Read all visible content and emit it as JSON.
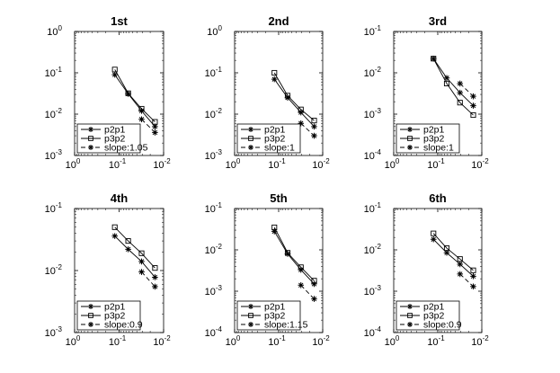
{
  "chart_data": [
    {
      "type": "line",
      "title": "1st",
      "xscale": "log",
      "yscale": "log",
      "xlim": [
        1,
        0.01
      ],
      "ylim": [
        0.001,
        1
      ],
      "x_ticks": [
        {
          "base": "10",
          "exp": "0"
        },
        {
          "base": "10",
          "exp": "-1"
        },
        {
          "base": "10",
          "exp": "-2"
        }
      ],
      "y_ticks": [
        {
          "base": "10",
          "exp": "-3"
        },
        {
          "base": "10",
          "exp": "-2"
        },
        {
          "base": "10",
          "exp": "-1"
        },
        {
          "base": "10",
          "exp": "0"
        }
      ],
      "legend": "bottom-left",
      "series": [
        {
          "name": "p2p1",
          "marker": "star",
          "style": "solid",
          "x": [
            0.125,
            0.0625,
            0.03125,
            0.015625
          ],
          "y": [
            0.09,
            0.031,
            0.012,
            0.005
          ]
        },
        {
          "name": "p3p2",
          "marker": "square",
          "style": "solid",
          "x": [
            0.125,
            0.0625,
            0.03125,
            0.015625
          ],
          "y": [
            0.12,
            0.032,
            0.0135,
            0.0065
          ]
        },
        {
          "name": "slope:1.05",
          "marker": "star",
          "style": "dashed",
          "x": [
            0.03125,
            0.015625
          ],
          "y": [
            0.0075,
            0.0036
          ]
        }
      ]
    },
    {
      "type": "line",
      "title": "2nd",
      "xscale": "log",
      "yscale": "log",
      "xlim": [
        1,
        0.01
      ],
      "ylim": [
        0.001,
        1
      ],
      "x_ticks": [
        {
          "base": "10",
          "exp": "0"
        },
        {
          "base": "10",
          "exp": "-1"
        },
        {
          "base": "10",
          "exp": "-2"
        }
      ],
      "y_ticks": [
        {
          "base": "10",
          "exp": "-3"
        },
        {
          "base": "10",
          "exp": "-2"
        },
        {
          "base": "10",
          "exp": "-1"
        },
        {
          "base": "10",
          "exp": "0"
        }
      ],
      "legend": "bottom-left",
      "series": [
        {
          "name": "p2p1",
          "marker": "star",
          "style": "solid",
          "x": [
            0.125,
            0.0625,
            0.03125,
            0.015625
          ],
          "y": [
            0.07,
            0.025,
            0.011,
            0.005
          ]
        },
        {
          "name": "p3p2",
          "marker": "square",
          "style": "solid",
          "x": [
            0.125,
            0.0625,
            0.03125,
            0.015625
          ],
          "y": [
            0.1,
            0.028,
            0.013,
            0.007
          ]
        },
        {
          "name": "slope:1",
          "marker": "star",
          "style": "dashed",
          "x": [
            0.03125,
            0.015625
          ],
          "y": [
            0.006,
            0.003
          ]
        }
      ]
    },
    {
      "type": "line",
      "title": "3rd",
      "xscale": "log",
      "yscale": "log",
      "xlim": [
        1,
        0.01
      ],
      "ylim": [
        0.0001,
        0.1
      ],
      "x_ticks": [
        {
          "base": "10",
          "exp": "0"
        },
        {
          "base": "10",
          "exp": "-1"
        },
        {
          "base": "10",
          "exp": "-2"
        }
      ],
      "y_ticks": [
        {
          "base": "10",
          "exp": "-4"
        },
        {
          "base": "10",
          "exp": "-3"
        },
        {
          "base": "10",
          "exp": "-2"
        },
        {
          "base": "10",
          "exp": "-1"
        }
      ],
      "legend": "bottom-left",
      "series": [
        {
          "name": "p2p1",
          "marker": "star",
          "style": "solid",
          "x": [
            0.125,
            0.0625,
            0.03125,
            0.015625
          ],
          "y": [
            0.022,
            0.0075,
            0.0033,
            0.0016
          ]
        },
        {
          "name": "p3p2",
          "marker": "square",
          "style": "solid",
          "x": [
            0.125,
            0.0625,
            0.03125,
            0.015625
          ],
          "y": [
            0.022,
            0.0055,
            0.0019,
            0.00095
          ]
        },
        {
          "name": "slope:1",
          "marker": "star",
          "style": "dashed",
          "x": [
            0.03125,
            0.015625
          ],
          "y": [
            0.0055,
            0.0027
          ]
        }
      ]
    },
    {
      "type": "line",
      "title": "4th",
      "xscale": "log",
      "yscale": "log",
      "xlim": [
        1,
        0.01
      ],
      "ylim": [
        0.001,
        0.1
      ],
      "x_ticks": [
        {
          "base": "10",
          "exp": "0"
        },
        {
          "base": "10",
          "exp": "-1"
        },
        {
          "base": "10",
          "exp": "-2"
        }
      ],
      "y_ticks": [
        {
          "base": "10",
          "exp": "-3"
        },
        {
          "base": "10",
          "exp": "-2"
        },
        {
          "base": "10",
          "exp": "-1"
        }
      ],
      "legend": "bottom-left",
      "series": [
        {
          "name": "p2p1",
          "marker": "star",
          "style": "solid",
          "x": [
            0.125,
            0.0625,
            0.03125,
            0.015625
          ],
          "y": [
            0.036,
            0.022,
            0.014,
            0.0078
          ]
        },
        {
          "name": "p3p2",
          "marker": "square",
          "style": "solid",
          "x": [
            0.125,
            0.0625,
            0.03125,
            0.015625
          ],
          "y": [
            0.05,
            0.03,
            0.019,
            0.011
          ]
        },
        {
          "name": "slope:0.9",
          "marker": "star",
          "style": "dashed",
          "x": [
            0.03125,
            0.015625
          ],
          "y": [
            0.0095,
            0.0055
          ]
        }
      ]
    },
    {
      "type": "line",
      "title": "5th",
      "xscale": "log",
      "yscale": "log",
      "xlim": [
        1,
        0.01
      ],
      "ylim": [
        0.0001,
        0.1
      ],
      "x_ticks": [
        {
          "base": "10",
          "exp": "0"
        },
        {
          "base": "10",
          "exp": "-1"
        },
        {
          "base": "10",
          "exp": "-2"
        }
      ],
      "y_ticks": [
        {
          "base": "10",
          "exp": "-4"
        },
        {
          "base": "10",
          "exp": "-3"
        },
        {
          "base": "10",
          "exp": "-2"
        },
        {
          "base": "10",
          "exp": "-1"
        }
      ],
      "legend": "bottom-left",
      "series": [
        {
          "name": "p2p1",
          "marker": "star",
          "style": "solid",
          "x": [
            0.125,
            0.0625,
            0.03125,
            0.015625
          ],
          "y": [
            0.028,
            0.008,
            0.0033,
            0.0015
          ]
        },
        {
          "name": "p3p2",
          "marker": "square",
          "style": "solid",
          "x": [
            0.125,
            0.0625,
            0.03125,
            0.015625
          ],
          "y": [
            0.035,
            0.0085,
            0.0038,
            0.0018
          ]
        },
        {
          "name": "slope:1.15",
          "marker": "star",
          "style": "dashed",
          "x": [
            0.03125,
            0.015625
          ],
          "y": [
            0.0014,
            0.00065
          ]
        }
      ]
    },
    {
      "type": "line",
      "title": "6th",
      "xscale": "log",
      "yscale": "log",
      "xlim": [
        1,
        0.01
      ],
      "ylim": [
        0.0001,
        0.1
      ],
      "x_ticks": [
        {
          "base": "10",
          "exp": "0"
        },
        {
          "base": "10",
          "exp": "-1"
        },
        {
          "base": "10",
          "exp": "-2"
        }
      ],
      "y_ticks": [
        {
          "base": "10",
          "exp": "-4"
        },
        {
          "base": "10",
          "exp": "-3"
        },
        {
          "base": "10",
          "exp": "-2"
        },
        {
          "base": "10",
          "exp": "-1"
        }
      ],
      "legend": "bottom-left",
      "series": [
        {
          "name": "p2p1",
          "marker": "star",
          "style": "solid",
          "x": [
            0.125,
            0.0625,
            0.03125,
            0.015625
          ],
          "y": [
            0.018,
            0.0085,
            0.0045,
            0.0023
          ]
        },
        {
          "name": "p3p2",
          "marker": "square",
          "style": "solid",
          "x": [
            0.125,
            0.0625,
            0.03125,
            0.015625
          ],
          "y": [
            0.025,
            0.011,
            0.006,
            0.0032
          ]
        },
        {
          "name": "slope:0.9",
          "marker": "star",
          "style": "dashed",
          "x": [
            0.03125,
            0.015625
          ],
          "y": [
            0.0026,
            0.0013
          ]
        }
      ]
    }
  ]
}
